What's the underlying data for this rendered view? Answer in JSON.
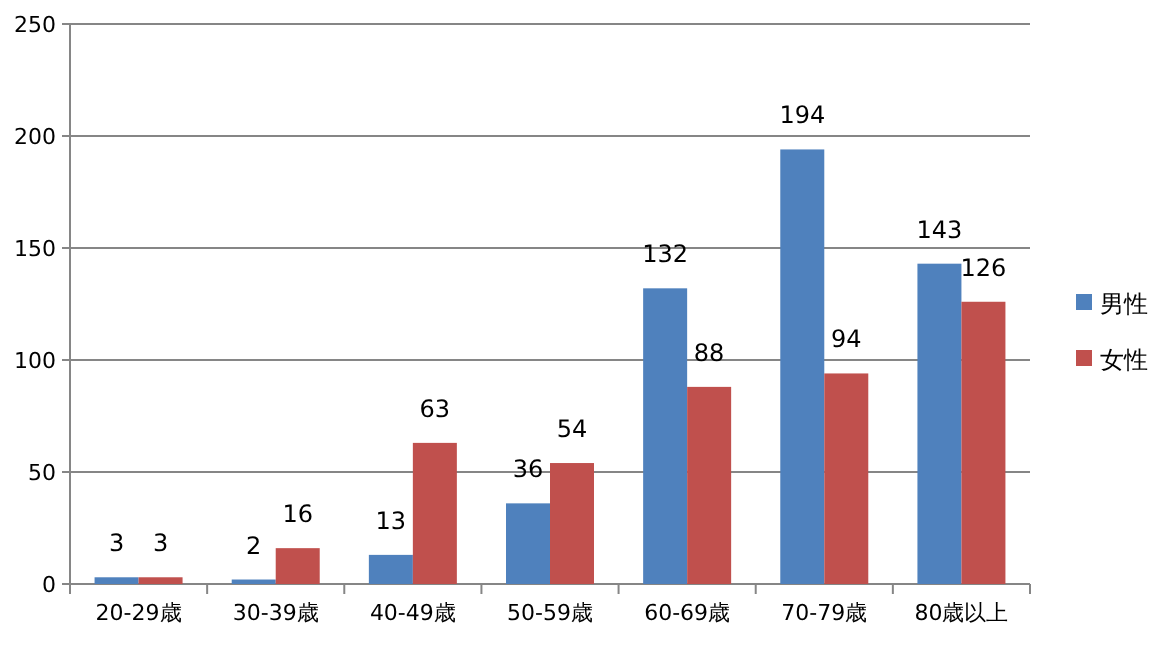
{
  "chart_data": {
    "type": "bar",
    "categories": [
      "20-29歳",
      "30-39歳",
      "40-49歳",
      "50-59歳",
      "60-69歳",
      "70-79歳",
      "80歳以上"
    ],
    "series": [
      {
        "name": "男性",
        "color": "#4f81bd",
        "values": [
          3,
          2,
          13,
          36,
          132,
          194,
          143
        ]
      },
      {
        "name": "女性",
        "color": "#c0504d",
        "values": [
          3,
          16,
          63,
          54,
          88,
          94,
          126
        ]
      }
    ],
    "ylim": [
      0,
      250
    ],
    "yticks": [
      0,
      50,
      100,
      150,
      200,
      250
    ],
    "grid": "y",
    "legend": "right",
    "data_labels": true
  }
}
